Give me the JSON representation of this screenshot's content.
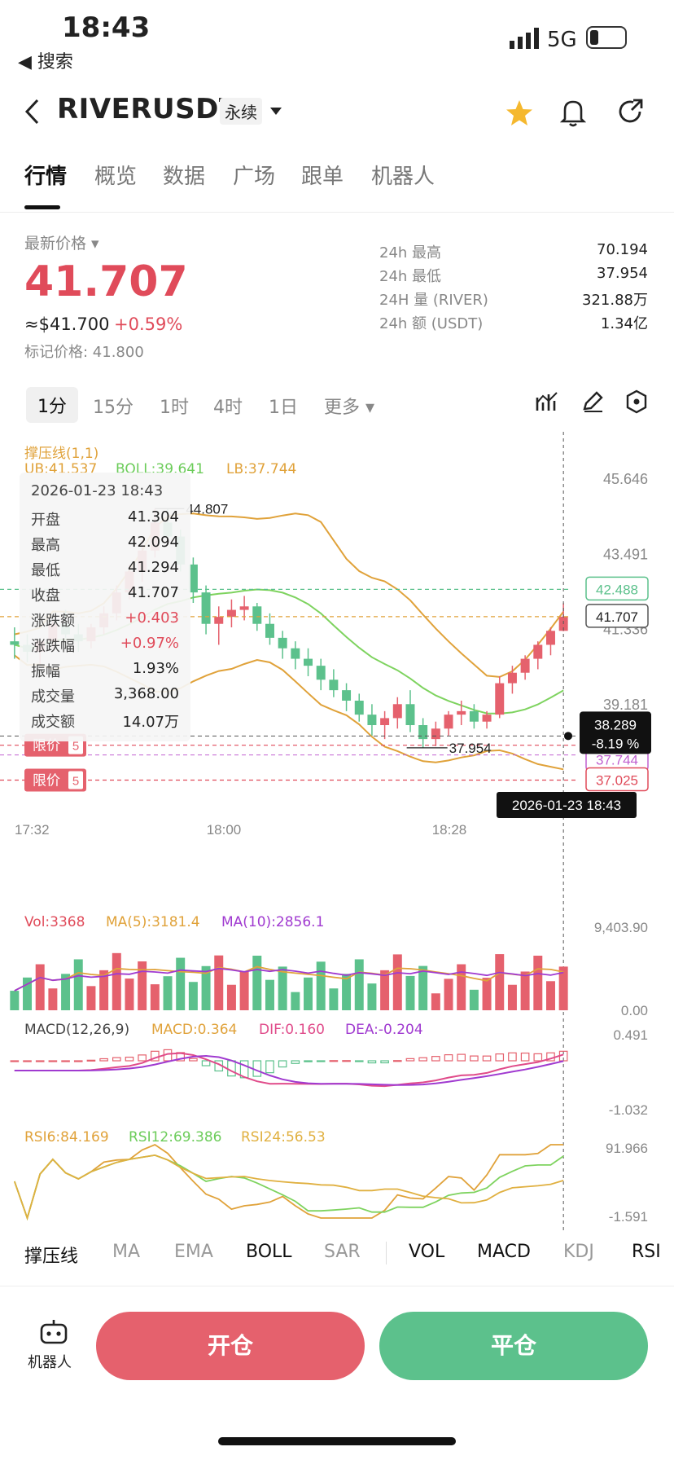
{
  "status": {
    "time": "18:43",
    "back_label": "◀ 搜索",
    "network": "5G"
  },
  "header": {
    "symbol": "RIVERUSDT",
    "contract_type": "永续",
    "icons": [
      "back-arrow",
      "star",
      "bell",
      "share"
    ],
    "star_color": "#f5b82e"
  },
  "tabs": [
    "行情",
    "概览",
    "数据",
    "广场",
    "跟单",
    "机器人"
  ],
  "price_block": {
    "label": "最新价格",
    "last_price": "41.707",
    "usd_price": "≈$41.700",
    "change_pct": "+0.59%",
    "mark_price": "标记价格: 41.800",
    "up_color": "#e04b5a"
  },
  "stats": [
    {
      "label": "24h  最高",
      "value": "70.194"
    },
    {
      "label": "24h  最低",
      "value": "37.954"
    },
    {
      "label": "24H  量 (RIVER)",
      "value": "321.88万"
    },
    {
      "label": "24h  额 (USDT)",
      "value": "1.34亿"
    }
  ],
  "intervals": [
    "1分",
    "15分",
    "1时",
    "4时",
    "1日",
    "更多 ▾"
  ],
  "chart_toolbar_icons": [
    "indicator-icon",
    "draw-icon",
    "settings-icon"
  ],
  "indicator_head": {
    "name": "撑压线(1,1)",
    "ub": "UB:41.537",
    "boll": "BOLL:39.641",
    "lb": "LB:37.744"
  },
  "info_box": {
    "datetime": "2026-01-23 18:43",
    "rows": [
      {
        "k": "开盘",
        "v": "41.304"
      },
      {
        "k": "最高",
        "v": "42.094"
      },
      {
        "k": "最低",
        "v": "41.294"
      },
      {
        "k": "收盘",
        "v": "41.707"
      },
      {
        "k": "涨跌额",
        "v": "+0.403"
      },
      {
        "k": "涨跌幅",
        "v": "+0.97%"
      },
      {
        "k": "振幅",
        "v": "1.93%"
      },
      {
        "k": "成交量",
        "v": "3,368.00"
      },
      {
        "k": "成交额",
        "v": "14.07万"
      }
    ]
  },
  "price_axis": [
    "45.646",
    "43.491",
    "41.336",
    "39.181",
    "37.025"
  ],
  "price_tags": {
    "green": "42.488",
    "current": "41.707",
    "cross": "38.289",
    "cross_pct": "-8.19 %",
    "lb": "37.744",
    "low_line": "37.025"
  },
  "annotations": {
    "high": "44.807",
    "low": "37.954"
  },
  "limit_orders": [
    {
      "label": "限价",
      "count": "5"
    },
    {
      "label": "限价",
      "count": "5"
    }
  ],
  "time_axis": [
    "17:32",
    "18:00",
    "18:28"
  ],
  "crosshair_time": "2026-01-23 18:43",
  "vol": {
    "title": "Vol:3368",
    "ma5": "MA(5):3181.4",
    "ma10": "MA(10):2856.1",
    "axis_top": "9,403.90",
    "axis_bottom": "0.00"
  },
  "macd": {
    "title": "MACD(12,26,9)",
    "macd": "MACD:0.364",
    "dif": "DIF:0.160",
    "dea": "DEA:-0.204",
    "axis_top": "0.491",
    "axis_bottom": "-1.032"
  },
  "rsi": {
    "rsi6": "RSI6:84.169",
    "rsi12": "RSI12:69.386",
    "rsi24": "RSI24:56.53",
    "axis_top": "91.966",
    "axis_bottom": "-1.591"
  },
  "indicator_tabs": [
    "撑压线",
    "MA",
    "EMA",
    "BOLL",
    "SAR",
    "VOL",
    "MACD",
    "KDJ",
    "RSI"
  ],
  "bottom": {
    "robot_label": "机器人",
    "open_label": "开仓",
    "close_label": "平仓",
    "open_color": "#e5616d",
    "close_color": "#5cc18c"
  },
  "chart_data": {
    "type": "candlestick",
    "title": "",
    "ylim": [
      36.5,
      46.3
    ],
    "candles": [
      [
        41.0,
        41.4,
        40.5,
        40.9
      ],
      [
        40.9,
        41.2,
        40.4,
        40.7
      ],
      [
        40.7,
        41.0,
        40.3,
        41.0
      ],
      [
        41.0,
        41.6,
        40.8,
        41.5
      ],
      [
        41.5,
        41.9,
        41.1,
        41.2
      ],
      [
        41.2,
        41.5,
        40.7,
        41.0
      ],
      [
        41.0,
        41.5,
        40.8,
        41.4
      ],
      [
        41.4,
        42.0,
        41.2,
        41.8
      ],
      [
        41.8,
        42.6,
        41.6,
        42.4
      ],
      [
        42.4,
        43.2,
        42.2,
        43.0
      ],
      [
        43.0,
        43.9,
        42.7,
        43.6
      ],
      [
        43.6,
        44.8,
        43.4,
        44.4
      ],
      [
        44.4,
        44.8,
        43.9,
        44.0
      ],
      [
        44.0,
        44.2,
        43.0,
        43.2
      ],
      [
        43.2,
        43.4,
        42.1,
        42.4
      ],
      [
        42.4,
        42.6,
        41.2,
        41.5
      ],
      [
        41.5,
        42.0,
        40.9,
        41.7
      ],
      [
        41.7,
        42.2,
        41.4,
        41.9
      ],
      [
        41.9,
        42.3,
        41.6,
        42.0
      ],
      [
        42.0,
        42.1,
        41.3,
        41.5
      ],
      [
        41.5,
        41.8,
        40.9,
        41.1
      ],
      [
        41.1,
        41.3,
        40.5,
        40.8
      ],
      [
        40.8,
        41.0,
        40.2,
        40.5
      ],
      [
        40.5,
        40.8,
        40.0,
        40.3
      ],
      [
        40.3,
        40.5,
        39.6,
        39.9
      ],
      [
        39.9,
        40.2,
        39.4,
        39.6
      ],
      [
        39.6,
        39.8,
        39.0,
        39.3
      ],
      [
        39.3,
        39.5,
        38.7,
        38.9
      ],
      [
        38.9,
        39.2,
        38.3,
        38.6
      ],
      [
        38.6,
        39.0,
        38.2,
        38.8
      ],
      [
        38.8,
        39.4,
        38.5,
        39.2
      ],
      [
        39.2,
        39.6,
        38.4,
        38.6
      ],
      [
        38.6,
        38.8,
        37.95,
        38.2
      ],
      [
        38.2,
        38.7,
        38.0,
        38.5
      ],
      [
        38.5,
        39.0,
        38.3,
        38.9
      ],
      [
        38.9,
        39.3,
        38.6,
        39.0
      ],
      [
        39.0,
        39.2,
        38.5,
        38.7
      ],
      [
        38.7,
        39.0,
        38.5,
        38.9
      ],
      [
        38.9,
        40.0,
        38.8,
        39.8
      ],
      [
        39.8,
        40.3,
        39.5,
        40.1
      ],
      [
        40.1,
        40.6,
        39.9,
        40.5
      ],
      [
        40.5,
        41.0,
        40.2,
        40.9
      ],
      [
        40.9,
        41.4,
        40.6,
        41.3
      ],
      [
        41.3,
        42.09,
        41.29,
        41.707
      ]
    ]
  }
}
